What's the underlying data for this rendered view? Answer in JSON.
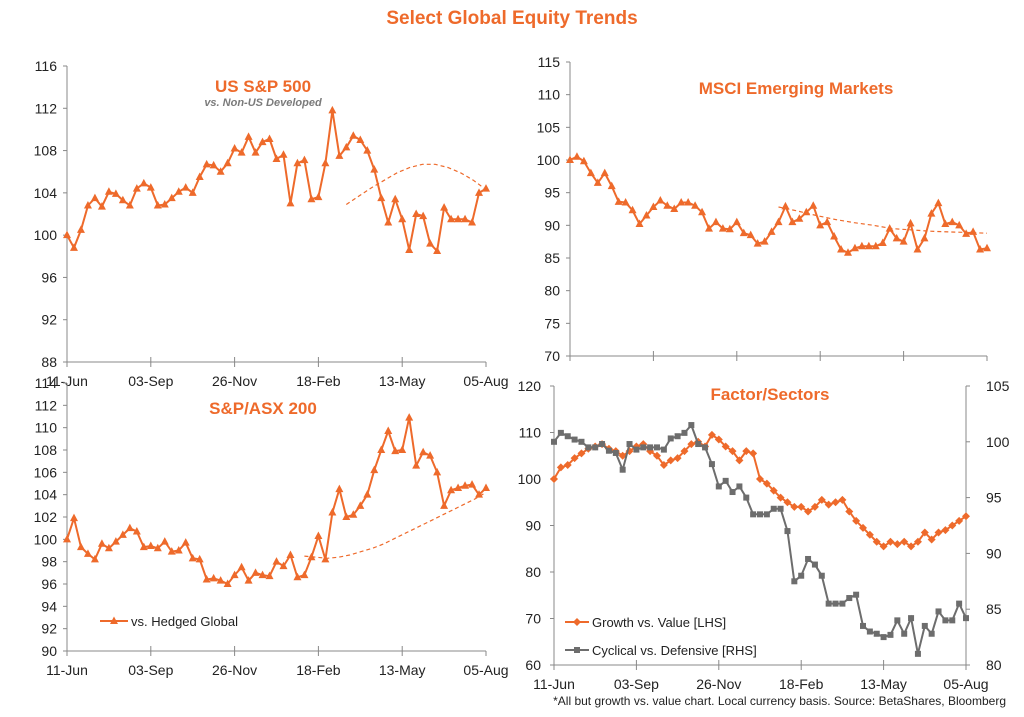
{
  "title": "Select Global Equity Trends",
  "footnote": "*All but growth vs. value chart.  Local currency basis.  Source: BetaShares, Bloomberg",
  "colors": {
    "series": "#ee6a2b",
    "secondary": "#6d6d6d",
    "grid": "#d0d0d0",
    "axis": "#888888"
  },
  "chart_data": [
    {
      "id": "sp500",
      "type": "line",
      "title": "US S&P 500",
      "subtitle": "vs. Non-US Developed",
      "x_labels": [
        "11-Jun",
        "03-Sep",
        "26-Nov",
        "18-Feb",
        "13-May",
        "05-Aug"
      ],
      "y_ticks": [
        "116",
        "112",
        "108",
        "104",
        "100",
        "96",
        "92",
        "88"
      ],
      "ylim": [
        88,
        116
      ],
      "grid": false,
      "series": [
        {
          "values": [
            100,
            98.8,
            100.5,
            102.8,
            103.5,
            102.7,
            104.1,
            103.9,
            103.3,
            102.8,
            104.4,
            104.9,
            104.5,
            102.8,
            102.9,
            103.5,
            104.1,
            104.5,
            104.0,
            105.5,
            106.7,
            106.6,
            106.0,
            106.8,
            108.2,
            107.8,
            109.3,
            107.8,
            108.8,
            109.1,
            107.2,
            107.6,
            103.0,
            106.8,
            107.1,
            103.4,
            103.6,
            106.8,
            111.8,
            107.5,
            108.3,
            109.4,
            109.0,
            108.0,
            106.2,
            103.5,
            101.2,
            103.4,
            101.5,
            98.6,
            102.0,
            101.8,
            99.2,
            98.5,
            102.6,
            101.5,
            101.5,
            101.5,
            101.2,
            104.0,
            104.4
          ]
        },
        {
          "name": "",
          "dashed": true,
          "x_start": 40,
          "values": [
            102.9,
            103.7,
            104.5,
            105.2,
            105.9,
            106.4,
            106.7,
            106.7,
            106.4,
            105.9,
            105.2,
            104.3
          ]
        }
      ]
    },
    {
      "id": "msci_em",
      "type": "line",
      "title": "MSCI Emerging Markets",
      "x_labels": [],
      "y_ticks": [
        "115",
        "110",
        "105",
        "100",
        "95",
        "90",
        "85",
        "80",
        "75",
        "70"
      ],
      "ylim": [
        70,
        115
      ],
      "grid": false,
      "series": [
        {
          "values": [
            100,
            100.5,
            99.8,
            98.0,
            96.5,
            98.0,
            96.0,
            93.6,
            93.5,
            92.3,
            90.2,
            91.5,
            92.8,
            93.8,
            93.0,
            92.5,
            93.5,
            93.5,
            93.0,
            92.0,
            89.5,
            90.5,
            89.5,
            89.4,
            90.5,
            88.8,
            88.5,
            87.2,
            87.5,
            89.0,
            90.5,
            92.9,
            90.5,
            91.0,
            92.0,
            93.0,
            90.0,
            90.5,
            88.3,
            86.3,
            85.8,
            86.5,
            86.8,
            86.8,
            86.8,
            87.3,
            89.5,
            88.0,
            87.5,
            90.3,
            86.3,
            88.0,
            91.8,
            93.4,
            90.2,
            90.5,
            90.0,
            88.7,
            89.0,
            86.3,
            86.5
          ]
        },
        {
          "name": "",
          "dashed": true,
          "x_start": 30,
          "values": [
            92.8,
            92.2,
            91.5,
            90.9,
            90.4,
            90.0,
            89.5,
            89.3,
            89.1,
            89.0,
            88.9,
            88.8
          ]
        }
      ]
    },
    {
      "id": "asx200",
      "type": "line",
      "title": "S&P/ASX 200",
      "x_labels": [
        "11-Jun",
        "03-Sep",
        "26-Nov",
        "18-Feb",
        "13-May",
        "05-Aug"
      ],
      "y_ticks": [
        "114",
        "112",
        "110",
        "108",
        "106",
        "104",
        "102",
        "100",
        "98",
        "96",
        "94",
        "92",
        "90"
      ],
      "ylim": [
        90,
        114
      ],
      "grid": false,
      "series": [
        {
          "name": "vs. Hedged Global",
          "values": [
            100,
            101.9,
            99.3,
            98.7,
            98.2,
            99.6,
            99.2,
            99.8,
            100.4,
            101.0,
            100.7,
            99.3,
            99.4,
            99.2,
            99.8,
            98.9,
            99.0,
            99.7,
            98.3,
            98.2,
            96.4,
            96.5,
            96.3,
            96.0,
            96.8,
            97.5,
            96.3,
            97.0,
            96.8,
            96.7,
            98.0,
            97.6,
            98.6,
            96.6,
            96.8,
            98.4,
            100.3,
            98.2,
            102.4,
            104.5,
            102.0,
            102.2,
            103.0,
            104.0,
            106.2,
            108.0,
            109.7,
            107.9,
            108.0,
            110.9,
            106.6,
            107.8,
            107.5,
            106.0,
            103.0,
            104.4,
            104.6,
            104.8,
            104.9,
            104.0,
            104.6
          ]
        },
        {
          "name": "",
          "dashed": true,
          "x_start": 34,
          "values": [
            98.5,
            98.4,
            98.3,
            98.4,
            98.6,
            98.9,
            99.2,
            99.6,
            100.1,
            100.6,
            101.1,
            101.6,
            102.1,
            102.6,
            103.1,
            103.6,
            104.2
          ]
        }
      ]
    },
    {
      "id": "factor_sectors",
      "type": "line",
      "title": "Factor/Sectors",
      "x_labels": [
        "11-Jun",
        "03-Sep",
        "26-Nov",
        "18-Feb",
        "13-May",
        "05-Aug"
      ],
      "y_ticks_left": [
        "120",
        "110",
        "100",
        "90",
        "80",
        "70",
        "60"
      ],
      "ylim_left": [
        60,
        120
      ],
      "y_ticks_right": [
        "105",
        "100",
        "95",
        "90",
        "85",
        "80"
      ],
      "ylim_right": [
        80,
        105
      ],
      "grid": false,
      "legend": "bottom-left",
      "series": [
        {
          "name": "Growth vs. Value [LHS]",
          "axis": "left",
          "marker": "diamond",
          "values": [
            100,
            102.5,
            103.0,
            104.5,
            105.5,
            106.5,
            107.0,
            107.5,
            106.5,
            106.0,
            105.0,
            106.0,
            107.0,
            107.5,
            106.0,
            105.0,
            103.0,
            104.0,
            104.5,
            106.0,
            107.5,
            108.0,
            107.0,
            109.5,
            108.5,
            107.0,
            106.0,
            104.0,
            106.0,
            105.5,
            100.0,
            99.0,
            97.5,
            96.0,
            95.0,
            94.0,
            94.0,
            93.0,
            94.0,
            95.5,
            94.5,
            95.0,
            95.5,
            93.0,
            91.0,
            89.5,
            88.0,
            86.5,
            85.5,
            86.5,
            86.0,
            86.5,
            85.5,
            86.5,
            88.5,
            87.0,
            88.5,
            89.0,
            90.0,
            91.0,
            92.0
          ]
        },
        {
          "name": "Cyclical vs. Defensive [RHS]",
          "axis": "right",
          "marker": "square",
          "values": [
            100,
            100.8,
            100.5,
            100.2,
            100.0,
            99.5,
            99.5,
            99.8,
            99.2,
            99.0,
            97.5,
            99.8,
            99.3,
            99.5,
            99.5,
            99.5,
            99.3,
            100.3,
            100.5,
            100.8,
            101.5,
            99.8,
            99.5,
            98.0,
            96.0,
            96.5,
            95.5,
            96.0,
            95.0,
            93.5,
            93.5,
            93.5,
            94.0,
            94.0,
            92.0,
            87.5,
            88.0,
            89.5,
            89.0,
            88.0,
            85.5,
            85.5,
            85.5,
            86.0,
            86.3,
            83.5,
            83.0,
            82.8,
            82.5,
            82.7,
            84.0,
            82.8,
            84.2,
            81.0,
            83.5,
            82.8,
            84.8,
            84.0,
            84.0,
            85.5,
            84.2
          ]
        }
      ]
    }
  ]
}
